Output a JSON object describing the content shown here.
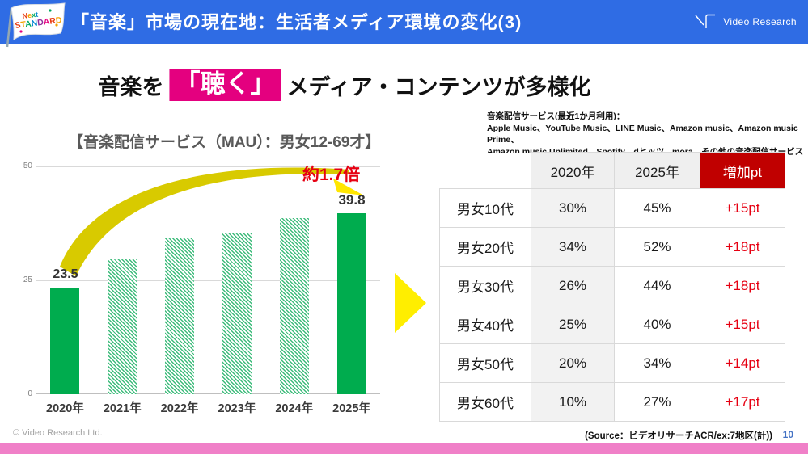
{
  "header": {
    "title": "「音楽」市場の現在地：生活者メディア環境の変化(3)",
    "logo_text": "Video Research",
    "flag": {
      "line1": "Next",
      "line2": "STANDARD"
    }
  },
  "headline": {
    "prefix": "音楽を",
    "highlight": "「聴く」",
    "suffix": "メディア・コンテンツが多様化"
  },
  "service_note": {
    "line1": "音楽配信サービス(最近1か月利用)：",
    "line2": "Apple Music、YouTube Music、LINE Music、Amazon music、Amazon music Prime、",
    "line3": "Amazon music Unlimited、Spotify、dヒッツ、mora、その他の音楽配信サービス"
  },
  "chart_data": {
    "type": "bar",
    "title": "【音楽配信サービス（MAU）：男女12-69才】",
    "categories": [
      "2020年",
      "2021年",
      "2022年",
      "2023年",
      "2024年",
      "2025年"
    ],
    "values": [
      23.5,
      29.7,
      34.2,
      35.5,
      38.7,
      39.8
    ],
    "bar_styles": [
      "solid",
      "hatched",
      "hatched",
      "hatched",
      "hatched",
      "solid"
    ],
    "labeled_values": {
      "2020": "23.5",
      "2025": "39.8"
    },
    "annotation": "約1.7倍",
    "ylim": [
      0,
      50
    ],
    "yticks": [
      0,
      25,
      50
    ],
    "xlabel": "",
    "ylabel": "",
    "grid": "horizontal",
    "legend": "none"
  },
  "table": {
    "headers": [
      "",
      "2020年",
      "2025年",
      "増加pt"
    ],
    "rows": [
      {
        "label": "男女10代",
        "v2020": "30%",
        "v2025": "45%",
        "diff": "+15pt"
      },
      {
        "label": "男女20代",
        "v2020": "34%",
        "v2025": "52%",
        "diff": "+18pt"
      },
      {
        "label": "男女30代",
        "v2020": "26%",
        "v2025": "44%",
        "diff": "+18pt"
      },
      {
        "label": "男女40代",
        "v2020": "25%",
        "v2025": "40%",
        "diff": "+15pt"
      },
      {
        "label": "男女50代",
        "v2020": "20%",
        "v2025": "34%",
        "diff": "+14pt"
      },
      {
        "label": "男女60代",
        "v2020": "10%",
        "v2025": "27%",
        "diff": "+17pt"
      }
    ]
  },
  "footer": {
    "copyright": "© Video Research Ltd.",
    "source": "(Source：ビデオリサーチACR/ex:7地区(計))",
    "page": "10"
  },
  "icons": {
    "flag": "next-standard-flag",
    "logo_mark": "video-research-logo",
    "big_arrow": "yellow-right-arrow",
    "growth_arrow": "yellow-curved-swoosh"
  },
  "colors": {
    "header_blue": "#2f6ce4",
    "highlight_pink": "#e4007f",
    "bottom_bar_pink": "#f080c8",
    "bar_green": "#00ac4e",
    "hatch_green": "#3fbc7c",
    "table_header_red": "#c00000",
    "accent_red": "#e60012",
    "arrow_yellow": "#ffee00",
    "swoosh_yellow": "#d8ca00",
    "page_number_blue": "#4472c4",
    "flag_letter_colors": [
      "#e8380d",
      "#f5a200",
      "#00a95f",
      "#0086d1",
      "#8f2e9c",
      "#e4007f"
    ]
  }
}
